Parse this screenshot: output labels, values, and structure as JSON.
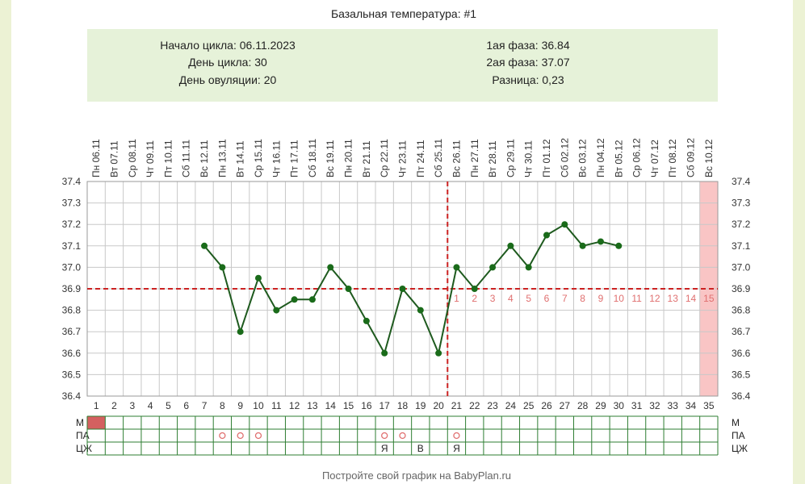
{
  "header": {
    "title": "Базальная температура: #1",
    "cycle_start": "Начало цикла: 06.11.2023",
    "cycle_day": "День цикла: 30",
    "ovulation_day": "День овуляции: 20",
    "phase1": "1ая фаза: 36.84",
    "phase2": "2ая фаза: 37.07",
    "difference": "Разница: 0,23"
  },
  "footer": {
    "credit": "Постройте свой график на BabyPlan.ru"
  },
  "colors": {
    "line": "#1e5a1e",
    "point": "#1a6b1a",
    "reference": "#cc2222",
    "phase_numbers": "#e07070",
    "info_bg": "#e6f2d9",
    "grid_border": "#2e7d32",
    "highlight": "#f9c5c5",
    "menstruation": "#d46060"
  },
  "chart_data": {
    "type": "line",
    "title": "Базальная температура: #1",
    "x": [
      1,
      2,
      3,
      4,
      5,
      6,
      7,
      8,
      9,
      10,
      11,
      12,
      13,
      14,
      15,
      16,
      17,
      18,
      19,
      20,
      21,
      22,
      23,
      24,
      25,
      26,
      27,
      28,
      29,
      30,
      31,
      32,
      33,
      34,
      35
    ],
    "dates": [
      "Пн 06.11",
      "Вт 07.11",
      "Ср 08.11",
      "Чт 09.11",
      "Пт 10.11",
      "Сб 11.11",
      "Вс 12.11",
      "Пн 13.11",
      "Вт 14.11",
      "Ср 15.11",
      "Чт 16.11",
      "Пт 17.11",
      "Сб 18.11",
      "Вс 19.11",
      "Пн 20.11",
      "Вт 21.11",
      "Ср 22.11",
      "Чт 23.11",
      "Пт 24.11",
      "Сб 25.11",
      "Вс 26.11",
      "Пн 27.11",
      "Вт 28.11",
      "Ср 29.11",
      "Чт 30.11",
      "Пт 01.12",
      "Сб 02.12",
      "Вс 03.12",
      "Пн 04.12",
      "Вт 05.12",
      "Ср 06.12",
      "Чт 07.12",
      "Пт 08.12",
      "Сб 09.12",
      "Вс 10.12"
    ],
    "series": [
      {
        "values": [
          null,
          null,
          null,
          null,
          null,
          null,
          37.1,
          37.0,
          36.7,
          36.95,
          36.8,
          36.85,
          36.85,
          37.0,
          36.9,
          36.75,
          36.6,
          36.9,
          36.8,
          36.6,
          37.0,
          36.9,
          37.0,
          37.1,
          37.0,
          37.15,
          37.2,
          37.1,
          37.12,
          37.1,
          null,
          null,
          null,
          null,
          null
        ]
      }
    ],
    "ylim": [
      36.4,
      37.4
    ],
    "yticks": [
      "36.4",
      "36.5",
      "36.6",
      "36.7",
      "36.8",
      "36.9",
      "37.0",
      "37.1",
      "37.2",
      "37.3",
      "37.4"
    ],
    "reference_line_y": 36.9,
    "ovulation_day": 20,
    "highlight_day": 35,
    "phase_labels": [
      "1",
      "2",
      "3",
      "4",
      "5",
      "6",
      "7",
      "8",
      "9",
      "10",
      "11",
      "12",
      "13",
      "14",
      "15"
    ],
    "phase_start_day": 21,
    "grid": true
  },
  "bottom_table": {
    "rows": [
      "М",
      "ПА",
      "ЦЖ"
    ],
    "menstruation_days": [
      1
    ],
    "pa_marks": [
      {
        "day": 8,
        "mark": "o"
      },
      {
        "day": 9,
        "mark": "o"
      },
      {
        "day": 10,
        "mark": "o"
      },
      {
        "day": 17,
        "mark": "o"
      },
      {
        "day": 18,
        "mark": "o"
      },
      {
        "day": 21,
        "mark": "o"
      }
    ],
    "cz_marks": [
      {
        "day": 17,
        "mark": "Я"
      },
      {
        "day": 19,
        "mark": "В"
      },
      {
        "day": 21,
        "mark": "Я"
      }
    ]
  }
}
